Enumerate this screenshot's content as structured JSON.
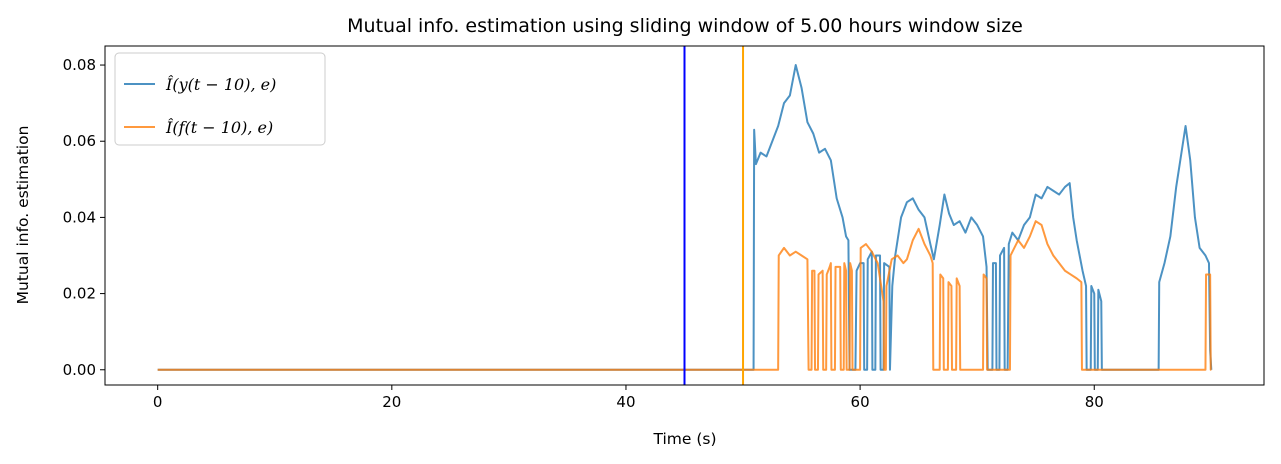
{
  "chart_data": {
    "type": "line",
    "title": "Mutual info. estimation using sliding window of 5.00 hours window size",
    "xlabel": "Time (s)",
    "ylabel": "Mutual info. estimation",
    "xlim": [
      -4.5,
      94.5
    ],
    "ylim": [
      -0.004,
      0.085
    ],
    "xticks": [
      0,
      20,
      40,
      60,
      80
    ],
    "yticks": [
      0.0,
      0.02,
      0.04,
      0.06,
      0.08
    ],
    "xtick_labels": [
      "0",
      "20",
      "40",
      "60",
      "80"
    ],
    "ytick_labels": [
      "0.00",
      "0.02",
      "0.04",
      "0.06",
      "0.08"
    ],
    "legend_position": "top-left",
    "vlines": [
      {
        "x": 45,
        "color": "#0000ff"
      },
      {
        "x": 50,
        "color": "#ffa500"
      }
    ],
    "series": [
      {
        "name": "Î(y(t − 10), e)",
        "color": "#1f77b4",
        "points": [
          [
            0,
            0
          ],
          [
            50.9,
            0
          ],
          [
            50.95,
            0.063
          ],
          [
            51.1,
            0.054
          ],
          [
            51.5,
            0.057
          ],
          [
            52,
            0.056
          ],
          [
            52.5,
            0.06
          ],
          [
            53,
            0.064
          ],
          [
            53.5,
            0.07
          ],
          [
            54,
            0.072
          ],
          [
            54.5,
            0.08
          ],
          [
            55,
            0.074
          ],
          [
            55.5,
            0.065
          ],
          [
            56,
            0.062
          ],
          [
            56.5,
            0.057
          ],
          [
            57,
            0.058
          ],
          [
            57.5,
            0.055
          ],
          [
            58,
            0.045
          ],
          [
            58.5,
            0.04
          ],
          [
            58.8,
            0.035
          ],
          [
            59.0,
            0.034
          ],
          [
            59.1,
            0
          ],
          [
            59.6,
            0
          ],
          [
            59.7,
            0.026
          ],
          [
            60,
            0.028
          ],
          [
            60.3,
            0.028
          ],
          [
            60.35,
            0
          ],
          [
            60.6,
            0
          ],
          [
            60.65,
            0.029
          ],
          [
            61,
            0.031
          ],
          [
            61.05,
            0
          ],
          [
            61.3,
            0
          ],
          [
            61.35,
            0.03
          ],
          [
            61.7,
            0.03
          ],
          [
            61.75,
            0
          ],
          [
            62.0,
            0
          ],
          [
            62.05,
            0.028
          ],
          [
            62.5,
            0.027
          ],
          [
            62.55,
            0
          ],
          [
            62.75,
            0.022
          ],
          [
            63,
            0.03
          ],
          [
            63.5,
            0.04
          ],
          [
            64,
            0.044
          ],
          [
            64.5,
            0.045
          ],
          [
            65,
            0.042
          ],
          [
            65.5,
            0.04
          ],
          [
            66,
            0.033
          ],
          [
            66.3,
            0.029
          ],
          [
            66.8,
            0.038
          ],
          [
            67.2,
            0.046
          ],
          [
            67.6,
            0.041
          ],
          [
            68,
            0.038
          ],
          [
            68.5,
            0.039
          ],
          [
            69,
            0.036
          ],
          [
            69.5,
            0.04
          ],
          [
            70,
            0.038
          ],
          [
            70.5,
            0.035
          ],
          [
            70.8,
            0.027
          ],
          [
            70.9,
            0
          ],
          [
            71.3,
            0
          ],
          [
            71.35,
            0.028
          ],
          [
            71.6,
            0.028
          ],
          [
            71.65,
            0
          ],
          [
            71.9,
            0
          ],
          [
            71.95,
            0.03
          ],
          [
            72.3,
            0.032
          ],
          [
            72.35,
            0
          ],
          [
            72.6,
            0
          ],
          [
            72.7,
            0.033
          ],
          [
            73,
            0.036
          ],
          [
            73.5,
            0.034
          ],
          [
            74,
            0.038
          ],
          [
            74.5,
            0.04
          ],
          [
            75,
            0.046
          ],
          [
            75.5,
            0.045
          ],
          [
            76,
            0.048
          ],
          [
            76.5,
            0.047
          ],
          [
            77,
            0.046
          ],
          [
            77.5,
            0.048
          ],
          [
            77.9,
            0.049
          ],
          [
            78.2,
            0.04
          ],
          [
            78.5,
            0.034
          ],
          [
            79,
            0.026
          ],
          [
            79.3,
            0.022
          ],
          [
            79.35,
            0
          ],
          [
            79.7,
            0
          ],
          [
            79.75,
            0.022
          ],
          [
            80,
            0.02
          ],
          [
            80.05,
            0
          ],
          [
            80.3,
            0
          ],
          [
            80.35,
            0.021
          ],
          [
            80.6,
            0.018
          ],
          [
            80.65,
            0
          ],
          [
            85.5,
            0
          ],
          [
            85.55,
            0.023
          ],
          [
            86,
            0.028
          ],
          [
            86.5,
            0.035
          ],
          [
            87,
            0.048
          ],
          [
            87.5,
            0.058
          ],
          [
            87.8,
            0.064
          ],
          [
            88.2,
            0.055
          ],
          [
            88.6,
            0.04
          ],
          [
            89,
            0.032
          ],
          [
            89.5,
            0.03
          ],
          [
            89.8,
            0.028
          ],
          [
            89.9,
            0.005
          ],
          [
            90,
            0
          ]
        ]
      },
      {
        "name": "Î(f(t − 10), e)",
        "color": "#ff7f0e",
        "points": [
          [
            0,
            0
          ],
          [
            53,
            0
          ],
          [
            53.05,
            0.03
          ],
          [
            53.5,
            0.032
          ],
          [
            54,
            0.03
          ],
          [
            54.5,
            0.031
          ],
          [
            55,
            0.03
          ],
          [
            55.5,
            0.029
          ],
          [
            55.6,
            0
          ],
          [
            55.85,
            0
          ],
          [
            55.9,
            0.026
          ],
          [
            56.1,
            0.026
          ],
          [
            56.15,
            0
          ],
          [
            56.4,
            0
          ],
          [
            56.45,
            0.025
          ],
          [
            56.8,
            0.026
          ],
          [
            56.85,
            0
          ],
          [
            57.1,
            0
          ],
          [
            57.15,
            0.025
          ],
          [
            57.4,
            0.027
          ],
          [
            57.5,
            0.028
          ],
          [
            57.55,
            0
          ],
          [
            57.85,
            0
          ],
          [
            57.9,
            0.027
          ],
          [
            58.3,
            0.027
          ],
          [
            58.35,
            0
          ],
          [
            58.6,
            0
          ],
          [
            58.65,
            0.028
          ],
          [
            58.8,
            0.026
          ],
          [
            58.85,
            0
          ],
          [
            59.1,
            0
          ],
          [
            59.15,
            0.028
          ],
          [
            59.3,
            0.026
          ],
          [
            59.35,
            0
          ],
          [
            60,
            0
          ],
          [
            60.05,
            0.032
          ],
          [
            60.5,
            0.033
          ],
          [
            61,
            0.031
          ],
          [
            61.5,
            0.028
          ],
          [
            61.8,
            0.022
          ],
          [
            62,
            0.018
          ],
          [
            62.05,
            0
          ],
          [
            62.2,
            0
          ],
          [
            62.25,
            0.022
          ],
          [
            62.7,
            0.029
          ],
          [
            63.2,
            0.03
          ],
          [
            63.7,
            0.028
          ],
          [
            64,
            0.029
          ],
          [
            64.5,
            0.034
          ],
          [
            65,
            0.037
          ],
          [
            65.5,
            0.033
          ],
          [
            66,
            0.03
          ],
          [
            66.2,
            0.028
          ],
          [
            66.25,
            0
          ],
          [
            66.8,
            0
          ],
          [
            66.85,
            0.025
          ],
          [
            67.1,
            0.024
          ],
          [
            67.15,
            0
          ],
          [
            67.5,
            0
          ],
          [
            67.55,
            0.023
          ],
          [
            67.8,
            0.022
          ],
          [
            67.85,
            0
          ],
          [
            68.2,
            0
          ],
          [
            68.25,
            0.024
          ],
          [
            68.5,
            0.022
          ],
          [
            68.55,
            0
          ],
          [
            70.5,
            0
          ],
          [
            70.55,
            0.025
          ],
          [
            70.8,
            0.024
          ],
          [
            70.85,
            0
          ],
          [
            72.8,
            0
          ],
          [
            72.85,
            0.03
          ],
          [
            73.5,
            0.034
          ],
          [
            74,
            0.032
          ],
          [
            74.5,
            0.035
          ],
          [
            75,
            0.039
          ],
          [
            75.5,
            0.038
          ],
          [
            76,
            0.033
          ],
          [
            76.5,
            0.03
          ],
          [
            77,
            0.028
          ],
          [
            77.5,
            0.026
          ],
          [
            78,
            0.025
          ],
          [
            78.5,
            0.024
          ],
          [
            78.9,
            0.023
          ],
          [
            78.95,
            0
          ],
          [
            89.5,
            0
          ],
          [
            89.55,
            0.025
          ],
          [
            89.9,
            0.025
          ],
          [
            89.95,
            0
          ],
          [
            90,
            0
          ]
        ]
      }
    ]
  }
}
